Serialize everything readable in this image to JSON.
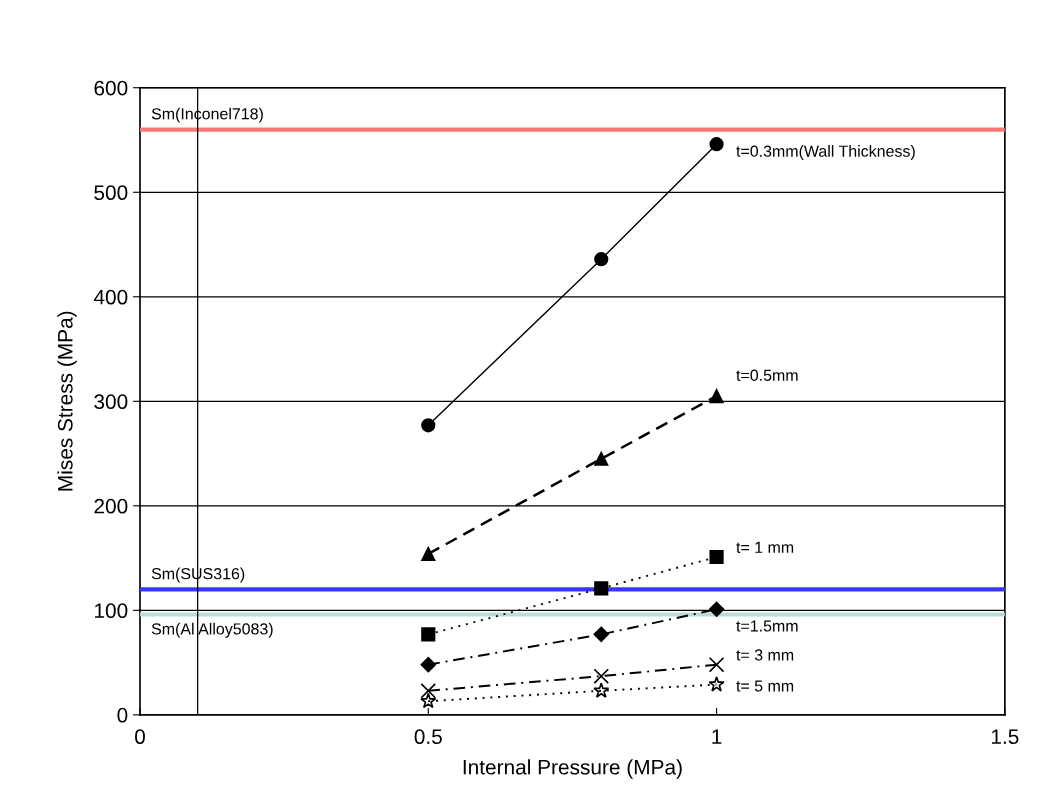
{
  "chart_data": {
    "type": "line",
    "xlabel": "Internal Pressure (MPa)",
    "ylabel": "Mises Stress (MPa)",
    "xlim": [
      0,
      1.5
    ],
    "xticks": [
      0,
      0.5,
      1,
      1.5
    ],
    "ylim": [
      0,
      600
    ],
    "yticks": [
      0,
      100,
      200,
      300,
      400,
      500,
      600
    ],
    "grid": "y",
    "legend": false,
    "series": [
      {
        "name": "t=0.3mm(Wall Thickness)",
        "color": "#000000",
        "x": [
          0.5,
          0.8,
          1
        ],
        "values": [
          277,
          436,
          546
        ],
        "marker": "circle",
        "line_style": "solid"
      },
      {
        "name": "t=0.5mm",
        "color": "#000000",
        "x": [
          0.5,
          0.8,
          1
        ],
        "values": [
          154,
          245,
          305
        ],
        "marker": "triangle",
        "line_style": "dashed"
      },
      {
        "name": "t= 1 mm",
        "color": "#000000",
        "x": [
          0.5,
          0.8,
          1
        ],
        "values": [
          77,
          121,
          151
        ],
        "marker": "square",
        "line_style": "dotted"
      },
      {
        "name": "t=1.5mm",
        "color": "#000000",
        "x": [
          0.5,
          0.8,
          1
        ],
        "values": [
          48,
          77,
          101
        ],
        "marker": "diamond",
        "line_style": "dashdot"
      },
      {
        "name": "t= 3 mm",
        "color": "#000000",
        "x": [
          0.5,
          0.8,
          1
        ],
        "values": [
          23,
          37,
          48
        ],
        "marker": "cross",
        "line_style": "dashdot"
      },
      {
        "name": "t= 5 mm",
        "color": "#000000",
        "x": [
          0.5,
          0.8,
          1
        ],
        "values": [
          13,
          23,
          29
        ],
        "marker": "star",
        "line_style": "dotted"
      }
    ],
    "ref_lines": [
      {
        "axis": "y",
        "value": 560,
        "label": "Sm(Inconel718)",
        "color": "#f87878"
      },
      {
        "axis": "y",
        "value": 120,
        "label": "Sm(SUS316)",
        "color": "#3838f0"
      },
      {
        "axis": "y",
        "value": 96,
        "label": "Sm(Al Alloy5083)",
        "color": "#b8dcdc"
      },
      {
        "axis": "x",
        "value": 0.1,
        "color": "#000000"
      }
    ]
  }
}
